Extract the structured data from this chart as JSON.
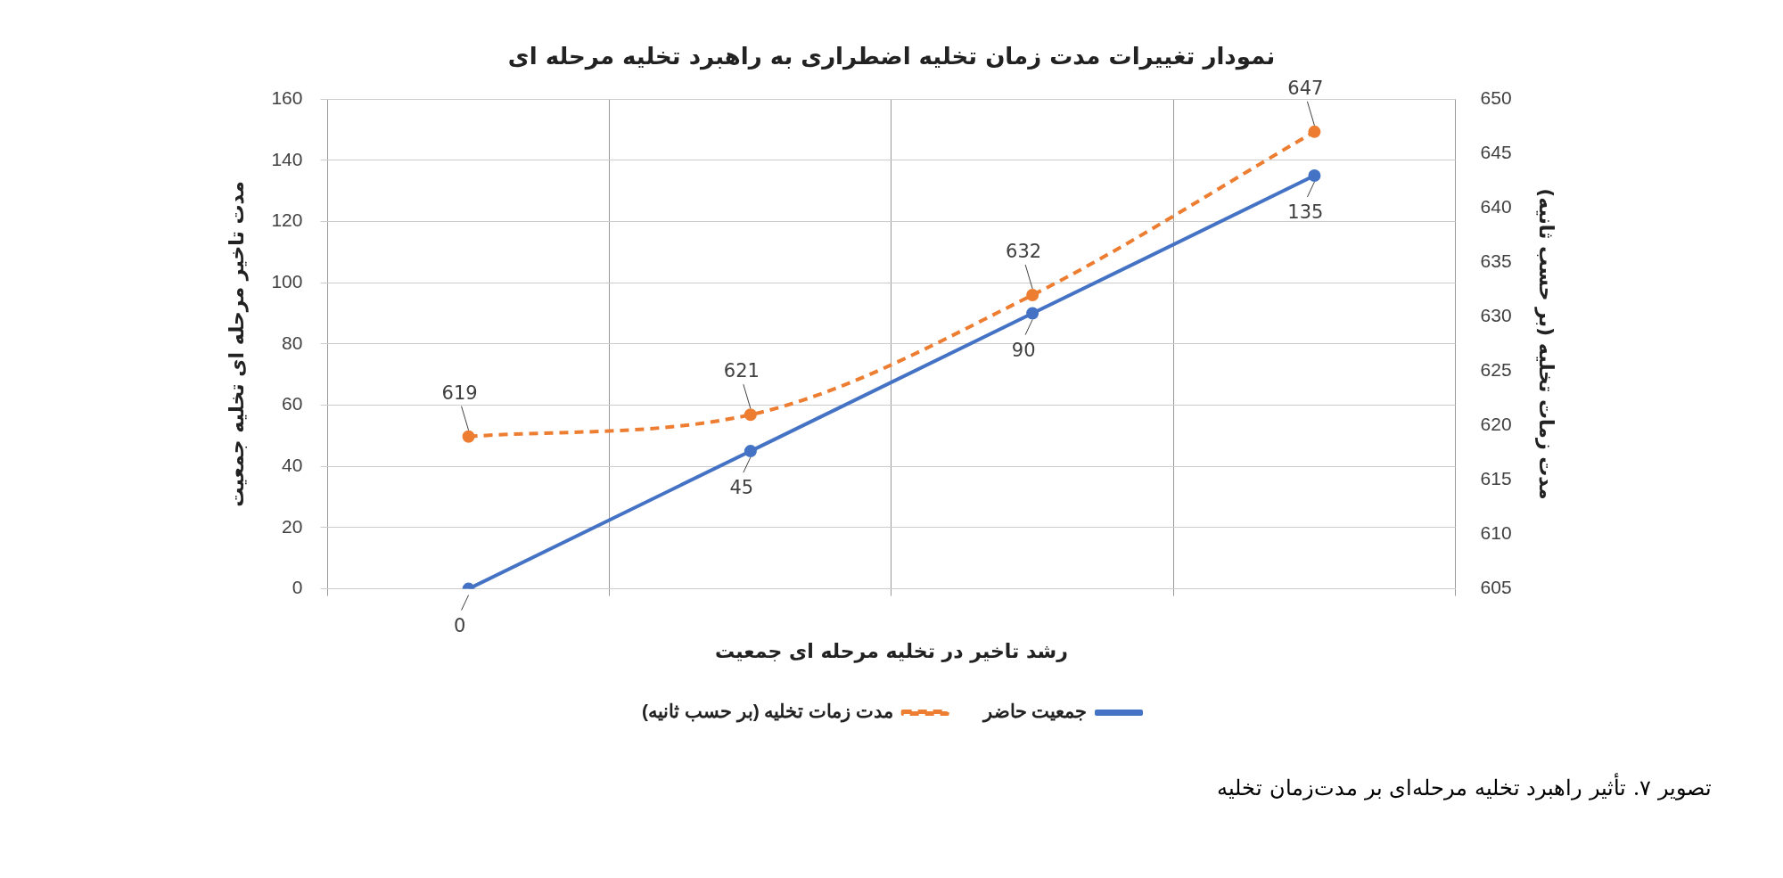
{
  "chart_data": {
    "type": "line",
    "title": "نمودار تغییرات مدت زمان تخلیه اضطراری به راهبرد تخلیه مرحله ای",
    "xlabel": "رشد تاخیر در تخلیه مرحله ای جمعیت",
    "ylabel": "مدت تاخیر مرحله ای تخلیه جمعیت",
    "y2label": "مدت زمات تخلیه (بر حسب ثانیه)",
    "categories": [
      null,
      null,
      null,
      null
    ],
    "series": [
      {
        "name": "جمعیت حاضر",
        "color": "#4472c4",
        "values": [
          0,
          45,
          90,
          135
        ],
        "line_style": "solid"
      },
      {
        "name": "مدت زمات تخلیه (بر حسب ثانیه)",
        "color": "#ed7d31",
        "values": [
          619,
          621,
          632,
          647
        ],
        "axis": "y2",
        "line_style": "dashed"
      }
    ],
    "ylim": [
      0,
      160
    ],
    "yticks": [
      0,
      20,
      40,
      60,
      80,
      100,
      120,
      140,
      160
    ],
    "y2lim": [
      605,
      650
    ],
    "y2ticks": [
      605,
      610,
      615,
      620,
      625,
      630,
      635,
      640,
      645,
      650
    ],
    "data_labels": true,
    "grid": true,
    "legend": "bottom",
    "marker": "circle",
    "annotations": [
      "تصویر ۷. تأثیر راهبرد تخلیه مرحله‌ای  بر مدت‌زمان تخلیه"
    ]
  }
}
